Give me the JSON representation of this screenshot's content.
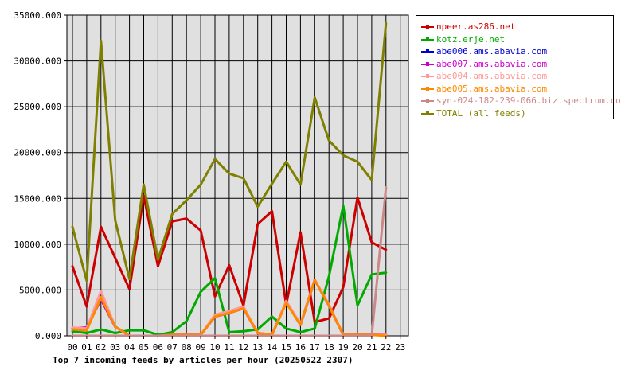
{
  "chart_data": {
    "type": "line",
    "title": "Top 7 incoming feeds by articles per hour (20250522 2307)",
    "x": [
      "00",
      "01",
      "02",
      "03",
      "04",
      "05",
      "06",
      "07",
      "08",
      "09",
      "10",
      "11",
      "12",
      "13",
      "14",
      "15",
      "16",
      "17",
      "18",
      "19",
      "20",
      "21",
      "22",
      "23"
    ],
    "ylim": [
      0,
      35000
    ],
    "yticks": [
      "0.000",
      "5000.000",
      "10000.000",
      "15000.000",
      "20000.000",
      "25000.000",
      "30000.000",
      "35000.000"
    ],
    "ytick_values": [
      0,
      5000,
      10000,
      15000,
      20000,
      25000,
      30000,
      35000
    ],
    "grid": true,
    "legend_position": "right",
    "plot_background": "#e0e0e0",
    "series": [
      {
        "name": "npeer.as286.net",
        "color": "#cc0000",
        "values": [
          7600,
          3200,
          11900,
          8500,
          5100,
          15300,
          7600,
          12500,
          12800,
          11500,
          4300,
          7700,
          3300,
          12200,
          13600,
          3400,
          11300,
          1500,
          1900,
          5300,
          15100,
          10200,
          9400,
          null
        ]
      },
      {
        "name": "kotz.erje.net",
        "color": "#00aa00",
        "values": [
          500,
          300,
          700,
          300,
          600,
          600,
          100,
          400,
          1600,
          4800,
          6300,
          400,
          500,
          700,
          2100,
          800,
          400,
          800,
          6500,
          14200,
          3300,
          6700,
          6900,
          null
        ]
      },
      {
        "name": "abe006.ams.abavia.com",
        "color": "#0000cc",
        "values": [
          800,
          900,
          4000,
          1000,
          0,
          0,
          0,
          100,
          100,
          100,
          2100,
          2500,
          3000,
          300,
          100,
          3700,
          1200,
          6100,
          3300,
          100,
          100,
          100,
          100,
          null
        ]
      },
      {
        "name": "abe007.ams.abavia.com",
        "color": "#cc00cc",
        "values": [
          800,
          900,
          4000,
          1000,
          0,
          0,
          0,
          100,
          100,
          100,
          2100,
          2500,
          3000,
          300,
          100,
          3700,
          1200,
          6100,
          3300,
          100,
          100,
          100,
          100,
          null
        ]
      },
      {
        "name": "abe004.ams.abavia.com",
        "color": "#ff9999",
        "values": [
          900,
          800,
          4900,
          1000,
          0,
          0,
          0,
          100,
          100,
          100,
          2300,
          2700,
          3200,
          300,
          100,
          3800,
          1300,
          6100,
          3400,
          100,
          100,
          100,
          100,
          null
        ]
      },
      {
        "name": "abe005.ams.abavia.com",
        "color": "#ff8800",
        "values": [
          700,
          600,
          4200,
          1000,
          0,
          0,
          0,
          100,
          100,
          100,
          2100,
          2500,
          3000,
          300,
          100,
          3600,
          1200,
          6100,
          3300,
          100,
          100,
          100,
          0,
          null
        ]
      },
      {
        "name": "syn-024-182-239-066.biz.spectrum.com",
        "color": "#cc8888",
        "values": [
          0,
          0,
          0,
          0,
          0,
          0,
          0,
          0,
          0,
          0,
          0,
          0,
          0,
          0,
          0,
          0,
          0,
          0,
          0,
          0,
          0,
          0,
          16200,
          null
        ]
      },
      {
        "name": "TOTAL (all feeds)",
        "color": "#808000",
        "values": [
          11900,
          6000,
          32200,
          12600,
          6200,
          16500,
          8300,
          13300,
          14800,
          16500,
          19300,
          17700,
          17200,
          14100,
          16600,
          19000,
          16500,
          26000,
          21300,
          19700,
          19000,
          17000,
          34100,
          null
        ]
      }
    ]
  }
}
